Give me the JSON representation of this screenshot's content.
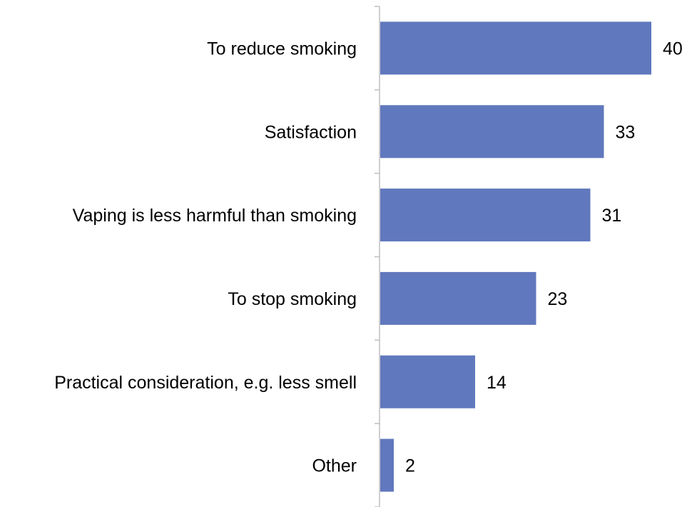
{
  "chart_data": {
    "type": "bar",
    "orientation": "horizontal",
    "categories": [
      "To reduce smoking",
      "Satisfaction",
      "Vaping is less harmful than smoking",
      "To stop smoking",
      "Practical consideration, e.g. less smell",
      "Other"
    ],
    "values": [
      40,
      33,
      31,
      23,
      14,
      2
    ],
    "value_labels": [
      "40",
      "33",
      "31",
      "23",
      "14",
      "2"
    ],
    "bar_color": "#6078bd",
    "axis_color": "#bfbfbf",
    "xlim": [
      0,
      40
    ],
    "grid": false,
    "legend": "none",
    "title": "",
    "xlabel": "",
    "ylabel": ""
  }
}
